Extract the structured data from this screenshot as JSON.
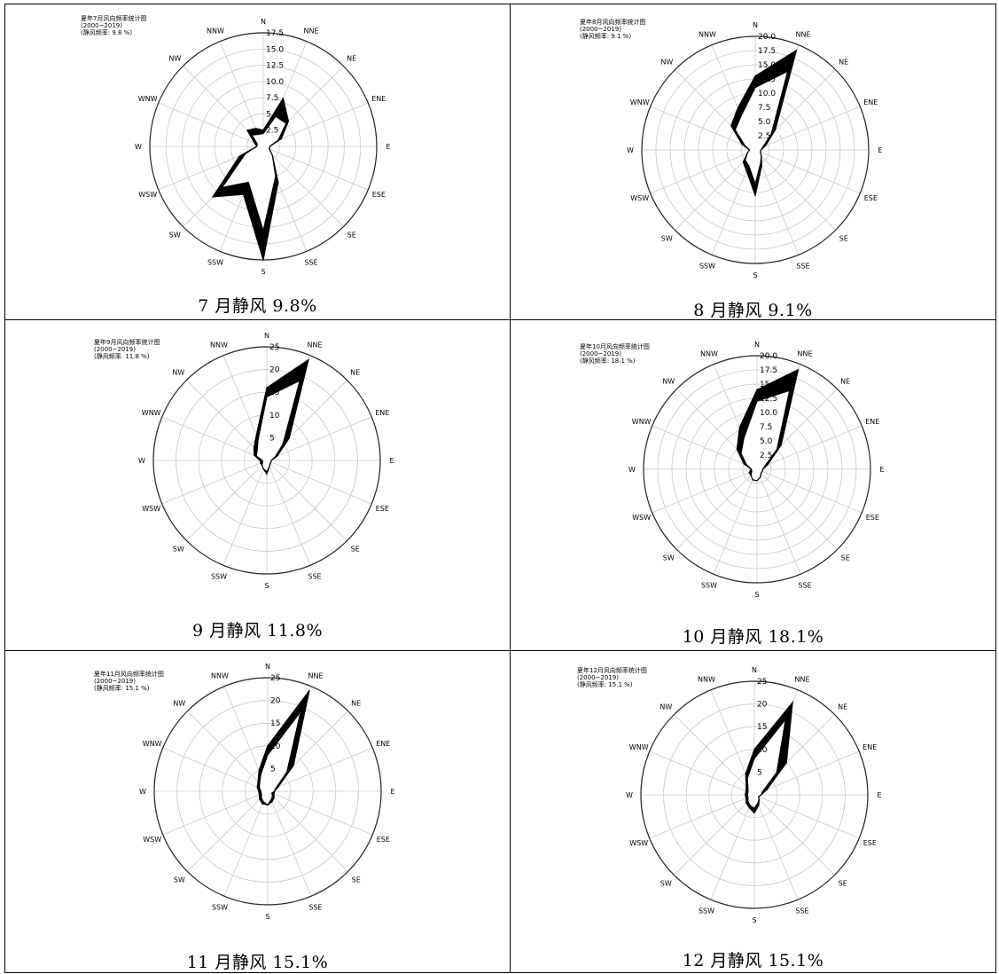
{
  "directions": [
    "N",
    "NNE",
    "NE",
    "ENE",
    "E",
    "ESE",
    "SE",
    "SSE",
    "S",
    "SSW",
    "SW",
    "WSW",
    "W",
    "WNW",
    "NW",
    "NNW"
  ],
  "chart_data": [
    {
      "type": "radar",
      "title_lines": [
        "夏年7月风向频率统计图",
        "(2000~2019)",
        "(静风频率: 9.8 %)"
      ],
      "caption": "7 月静风 9.8%",
      "rmax": 17.5,
      "ring_ticks": [
        2.5,
        5.0,
        7.5,
        10.0,
        12.5,
        15.0,
        17.5
      ],
      "ring_labels": [
        "2.5",
        "5.0",
        "7.5",
        "10.0",
        "12.5",
        "15.0",
        "17.5"
      ],
      "series": [
        {
          "values": [
            2.5,
            8,
            5.5,
            3,
            1,
            1,
            2,
            6,
            17.5,
            8,
            11,
            4,
            1,
            1.5,
            3.5,
            3
          ]
        },
        {
          "values": [
            2,
            5,
            5,
            2.5,
            1,
            1,
            2,
            5,
            13,
            6,
            9,
            3,
            1,
            1,
            2.5,
            2
          ]
        }
      ]
    },
    {
      "type": "radar",
      "title_lines": [
        "夏年8月风向频率统计图",
        "(2000~2019)",
        "(静风频率: 9.1 %)"
      ],
      "caption": "8 月静风 9.1%",
      "rmax": 20,
      "ring_ticks": [
        2.5,
        5.0,
        7.5,
        10.0,
        12.5,
        15.0,
        17.5,
        20.0
      ],
      "ring_labels": [
        "2.5",
        "5.0",
        "7.5",
        "10.0",
        "12.5",
        "15.0",
        "17.5",
        "20.0"
      ],
      "series": [
        {
          "values": [
            13,
            19,
            5,
            2,
            1,
            1,
            1.5,
            3,
            8,
            4,
            3,
            1.5,
            1,
            2.5,
            6,
            8
          ]
        },
        {
          "values": [
            11,
            15,
            4,
            1.5,
            1,
            1,
            1.5,
            2.5,
            6,
            3,
            2.5,
            1.5,
            1,
            2,
            5,
            6.5
          ]
        }
      ]
    },
    {
      "type": "radar",
      "title_lines": [
        "夏年9月风向频率统计图",
        "(2000~2019)",
        "(静风频率: 11.8 %)"
      ],
      "caption": "9 月静风 11.8%",
      "rmax": 25,
      "ring_ticks": [
        5,
        10,
        15,
        20,
        25
      ],
      "ring_labels": [
        "5",
        "10",
        "15",
        "20",
        "25"
      ],
      "series": [
        {
          "values": [
            16,
            24,
            7,
            2.5,
            1,
            1,
            1,
            1.5,
            3,
            2,
            1.5,
            1.5,
            1.5,
            3,
            4,
            6
          ]
        },
        {
          "values": [
            14,
            19,
            5,
            2,
            1,
            1,
            1,
            1.5,
            2.5,
            2,
            1.5,
            1,
            1,
            2.5,
            3,
            5
          ]
        }
      ]
    },
    {
      "type": "radar",
      "title_lines": [
        "夏年10月风向频率统计图",
        "(2000~2019)",
        "(静风频率: 18.1 %)"
      ],
      "caption": "10 月静风 18.1%",
      "rmax": 20,
      "ring_ticks": [
        2.5,
        5.0,
        7.5,
        10.0,
        12.5,
        15.0,
        17.5,
        20.0
      ],
      "ring_labels": [
        "2.5",
        "5.0",
        "7.5",
        "10.0",
        "12.5",
        "15.0",
        "17.5",
        "20.0"
      ],
      "series": [
        {
          "values": [
            14,
            19,
            6,
            2,
            1,
            1,
            1,
            1.5,
            2,
            2,
            1.5,
            1.5,
            1,
            2.5,
            5,
            8
          ]
        },
        {
          "values": [
            12,
            15,
            5,
            1.5,
            1,
            1,
            1,
            1.5,
            2,
            2,
            1.5,
            1,
            1,
            2,
            4,
            6
          ]
        }
      ]
    },
    {
      "type": "radar",
      "title_lines": [
        "夏年11月风向频率统计图",
        "(2000~2019)",
        "(静风频率: 15.1 %)"
      ],
      "caption": "11 月静风 15.1%",
      "rmax": 25,
      "ring_ticks": [
        5,
        10,
        15,
        20,
        25
      ],
      "ring_labels": [
        "5",
        "10",
        "15",
        "20",
        "25"
      ],
      "series": [
        {
          "values": [
            10,
            24,
            8,
            2.5,
            1.5,
            1.5,
            2,
            2.5,
            3,
            3,
            2.5,
            2,
            2,
            2.5,
            3,
            5
          ]
        },
        {
          "values": [
            8,
            19,
            6,
            2,
            1.5,
            1,
            1.5,
            2,
            3,
            2.5,
            2,
            1.5,
            1.5,
            2,
            2.5,
            4
          ]
        }
      ]
    },
    {
      "type": "radar",
      "title_lines": [
        "夏年12月风向频率统计图",
        "(2000~2019)",
        "(静风频率: 15.1 %)"
      ],
      "caption": "12 月静风 15.1%",
      "rmax": 25,
      "ring_ticks": [
        5,
        10,
        15,
        20,
        25
      ],
      "ring_labels": [
        "5",
        "10",
        "15",
        "20",
        "25"
      ],
      "series": [
        {
          "values": [
            10,
            22,
            10,
            3,
            1.5,
            1,
            1.5,
            2.5,
            4,
            3,
            2.5,
            2,
            2,
            2,
            2.5,
            5
          ]
        },
        {
          "values": [
            8,
            18,
            7,
            2,
            1.5,
            1,
            1.5,
            2,
            3,
            2.5,
            2,
            1.5,
            1.5,
            1.5,
            2,
            4
          ]
        }
      ]
    }
  ]
}
